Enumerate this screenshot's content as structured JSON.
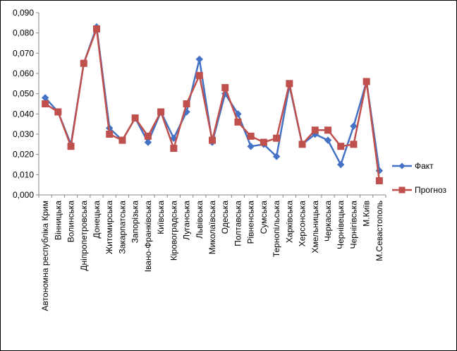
{
  "chart_data": {
    "type": "line",
    "categories": [
      "Автономна республіка Крим",
      "Вінницька",
      "Волинська",
      "Дніпропетровська",
      "Донецька",
      "Житомирська",
      "Закарпатська",
      "Запорізька",
      "Івано-Франківська",
      "Київська",
      "Кіровоградська",
      "Луганська",
      "Львівська",
      "Миколаївська",
      "Одеська",
      "Полтавська",
      "Рівненська",
      "Сумська",
      "Тернопільська",
      "Харківська",
      "Херсонська",
      "Хмельницька",
      "Черкаська",
      "Чернівецька",
      "Чернігівська",
      "М.Київ",
      "М.Севастополь"
    ],
    "series": [
      {
        "name": "Факт",
        "color": "#4472C4",
        "marker": "diamond",
        "values": [
          0.048,
          0.041,
          0.025,
          0.065,
          0.083,
          0.033,
          0.027,
          0.038,
          0.026,
          0.041,
          0.028,
          0.041,
          0.067,
          0.026,
          0.05,
          0.04,
          0.024,
          0.025,
          0.019,
          0.054,
          0.025,
          0.03,
          0.027,
          0.015,
          0.034,
          0.056,
          0.012
        ]
      },
      {
        "name": "Прогноз",
        "color": "#C0504D",
        "marker": "square",
        "values": [
          0.045,
          0.041,
          0.024,
          0.065,
          0.082,
          0.03,
          0.027,
          0.038,
          0.029,
          0.041,
          0.023,
          0.045,
          0.059,
          0.027,
          0.053,
          0.036,
          0.029,
          0.026,
          0.028,
          0.055,
          0.025,
          0.032,
          0.032,
          0.024,
          0.025,
          0.056,
          0.007
        ]
      }
    ],
    "yticks": [
      "0,000",
      "0,010",
      "0,020",
      "0,030",
      "0,040",
      "0,050",
      "0,060",
      "0,070",
      "0,080",
      "0,090"
    ],
    "ylim": [
      0,
      0.09
    ],
    "grid": false,
    "legend_position": "right"
  }
}
